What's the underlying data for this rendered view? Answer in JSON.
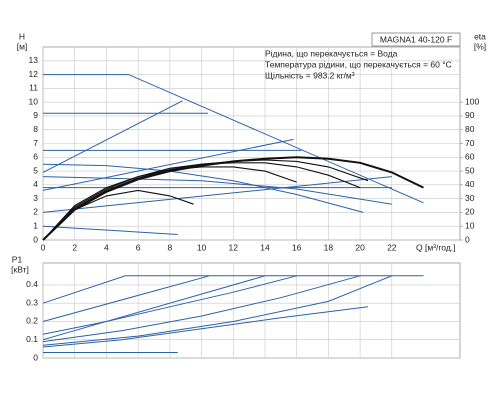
{
  "chart_data": [
    {
      "type": "line",
      "title": "MAGNA1 40-120 F",
      "annotations": [
        "Рідина, що перекачується = Вода",
        "Температура рідини, що перекачується = 60 °C",
        "Щільність = 983.2 кг/м³"
      ],
      "x_label": "Q [м³/год.]",
      "y_label": "H",
      "y_unit": "[м]",
      "y2_label": "eta",
      "y2_unit": "[%]",
      "xlim": [
        0,
        26.3
      ],
      "xticks": [
        0,
        2,
        4,
        6,
        8,
        10,
        12,
        14,
        16,
        18,
        20,
        22
      ],
      "ylim": [
        0,
        14
      ],
      "yticks": [
        0,
        1,
        2,
        3,
        4,
        5,
        6,
        7,
        8,
        9,
        10,
        11,
        12,
        13
      ],
      "y2lim": [
        0,
        140
      ],
      "y2ticks": [
        0,
        10,
        20,
        30,
        40,
        50,
        60,
        70,
        80,
        90,
        100
      ],
      "grid": true,
      "series": [
        {
          "color": "#2a62a8",
          "x": [
            0,
            5.4,
            24
          ],
          "values": [
            12,
            12,
            2.7
          ]
        },
        {
          "color": "#2a62a8",
          "x": [
            0,
            10.4
          ],
          "values": [
            9.2,
            9.2
          ]
        },
        {
          "color": "#2a62a8",
          "x": [
            0,
            16.3
          ],
          "values": [
            6.5,
            6.5
          ]
        },
        {
          "color": "#2a62a8",
          "x": [
            0,
            4,
            8,
            12,
            16,
            20.2
          ],
          "values": [
            5.5,
            5.4,
            5.0,
            4.3,
            3.3,
            2.0
          ]
        },
        {
          "color": "#2a62a8",
          "x": [
            0,
            8.8
          ],
          "values": [
            4.9,
            10.1
          ]
        },
        {
          "color": "#2a62a8",
          "x": [
            0,
            15.8
          ],
          "values": [
            3.6,
            7.3
          ]
        },
        {
          "color": "#2a62a8",
          "x": [
            0,
            22
          ],
          "values": [
            2.0,
            4.6
          ]
        },
        {
          "color": "#2a62a8",
          "x": [
            0,
            22
          ],
          "values": [
            3.8,
            3.8
          ]
        },
        {
          "color": "#2a62a8",
          "x": [
            0,
            8.5
          ],
          "values": [
            1.0,
            0.4
          ]
        },
        {
          "color": "#2a62a8",
          "x": [
            0,
            10,
            16,
            22
          ],
          "values": [
            4.6,
            4.3,
            3.7,
            2.6
          ]
        },
        {
          "color": "#111111",
          "axis": "y2",
          "x": [
            0,
            2,
            4,
            6,
            8,
            10,
            12,
            14,
            16,
            18,
            20,
            22,
            24
          ],
          "values": [
            0,
            22,
            35,
            44,
            50,
            54,
            57,
            59,
            60,
            59,
            56,
            49,
            38
          ]
        },
        {
          "color": "#111111",
          "axis": "y2",
          "x": [
            0,
            2,
            4,
            6,
            8,
            10,
            12,
            14,
            16,
            18,
            20.5
          ],
          "values": [
            0,
            23,
            36,
            45,
            51,
            55,
            57,
            58,
            57,
            53,
            43
          ]
        },
        {
          "color": "#111111",
          "axis": "y2",
          "x": [
            0,
            2,
            4,
            6,
            8,
            10,
            12,
            14,
            16,
            18,
            20
          ],
          "values": [
            0,
            24,
            37,
            46,
            52,
            55,
            56,
            56,
            53,
            47,
            38
          ]
        },
        {
          "color": "#111111",
          "axis": "y2",
          "x": [
            0,
            2,
            4,
            6,
            8,
            10,
            12,
            14,
            16
          ],
          "values": [
            0,
            25,
            38,
            46,
            51,
            53,
            53,
            50,
            42
          ]
        },
        {
          "color": "#111111",
          "axis": "y2",
          "x": [
            0,
            2,
            4,
            6,
            8,
            9.5
          ],
          "values": [
            0,
            22,
            32,
            36,
            32,
            26
          ]
        }
      ]
    },
    {
      "type": "line",
      "y_label": "P1",
      "y_unit": "[кВт]",
      "xlim": [
        0,
        26.3
      ],
      "ylim": [
        0,
        0.52
      ],
      "yticks": [
        0,
        0.1,
        0.2,
        0.3,
        0.4
      ],
      "grid": true,
      "series": [
        {
          "color": "#2a62a8",
          "x": [
            0,
            5.2,
            24
          ],
          "values": [
            0.3,
            0.45,
            0.45
          ]
        },
        {
          "color": "#2a62a8",
          "x": [
            0,
            10.5
          ],
          "values": [
            0.2,
            0.45
          ]
        },
        {
          "color": "#2a62a8",
          "x": [
            0,
            14
          ],
          "values": [
            0.1,
            0.45
          ]
        },
        {
          "color": "#2a62a8",
          "x": [
            0,
            4,
            8,
            12,
            16
          ],
          "values": [
            0.13,
            0.2,
            0.28,
            0.36,
            0.45
          ]
        },
        {
          "color": "#2a62a8",
          "x": [
            0,
            5,
            10,
            15,
            20
          ],
          "values": [
            0.09,
            0.15,
            0.23,
            0.33,
            0.45
          ]
        },
        {
          "color": "#2a62a8",
          "x": [
            0,
            6,
            12,
            18,
            22
          ],
          "values": [
            0.07,
            0.12,
            0.2,
            0.31,
            0.45
          ]
        },
        {
          "color": "#2a62a8",
          "x": [
            0,
            5,
            10,
            15,
            20.5
          ],
          "values": [
            0.06,
            0.1,
            0.16,
            0.22,
            0.28
          ]
        },
        {
          "color": "#2a62a8",
          "x": [
            0,
            8.5
          ],
          "values": [
            0.03,
            0.03
          ]
        }
      ]
    }
  ]
}
